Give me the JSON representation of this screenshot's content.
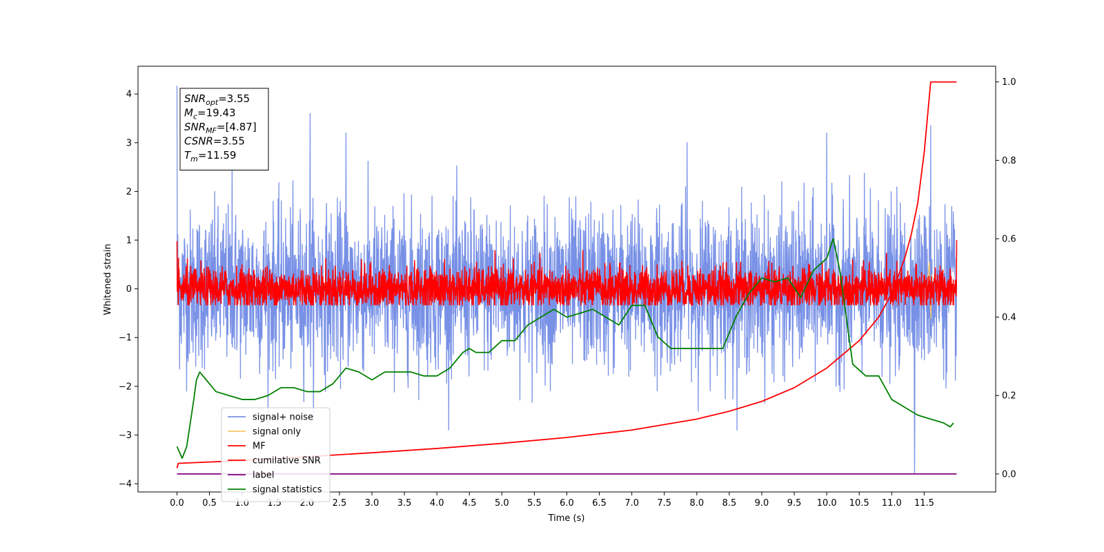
{
  "chart_data": {
    "type": "line",
    "xlabel": "Time (s)",
    "ylabel": "Whitened strain",
    "xlim": [
      -0.6,
      12.6
    ],
    "ylim": [
      -4.17,
      4.57
    ],
    "y2lim": [
      -0.046,
      1.04
    ],
    "grid": false,
    "legend_position": "lower-left",
    "x_ticks": [
      0.0,
      0.5,
      1.0,
      1.5,
      2.0,
      2.5,
      3.0,
      3.5,
      4.0,
      4.5,
      5.0,
      5.5,
      6.0,
      6.5,
      7.0,
      7.5,
      8.0,
      8.5,
      9.0,
      9.5,
      10.0,
      10.5,
      11.0,
      11.5
    ],
    "x_tick_labels": [
      "0.0",
      "0.5",
      "1.0",
      "1.5",
      "2.0",
      "2.5",
      "3.0",
      "3.5",
      "4.0",
      "4.5",
      "5.0",
      "5.5",
      "6.0",
      "6.5",
      "7.0",
      "7.5",
      "8.0",
      "8.5",
      "9.0",
      "9.5",
      "10.0",
      "10.5",
      "11.0",
      "11.5"
    ],
    "y_ticks": [
      4,
      3,
      2,
      1,
      0,
      -1,
      -2,
      -3,
      -4
    ],
    "y_tick_labels": [
      "4",
      "3",
      "2",
      "1",
      "0",
      "−1",
      "−2",
      "−3",
      "−4"
    ],
    "y2_ticks": [
      1.0,
      0.8,
      0.6,
      0.4,
      0.2,
      0.0
    ],
    "y2_tick_labels": [
      "1.0",
      "0.8",
      "0.6",
      "0.4",
      "0.2",
      "0.0"
    ],
    "annotation": {
      "lines": [
        {
          "base": "SNR",
          "sub": "opt",
          "value": "=3.55"
        },
        {
          "base": "M",
          "sub": "c",
          "value": "=19.43"
        },
        {
          "base": "SNR",
          "sub": "MF",
          "value": "=[4.87]"
        },
        {
          "base": "CSNR",
          "sub": "",
          "value": "=3.55"
        },
        {
          "base": "T",
          "sub": "m",
          "value": "=11.59"
        }
      ]
    },
    "series": [
      {
        "name": "signal+ noise",
        "color": "#7891e6",
        "axis": "left",
        "kind": "noise",
        "x_range": [
          0.0,
          12.0
        ],
        "amplitude": 0.8,
        "peaks_x": [
          0.0,
          0.85,
          2.05,
          2.6,
          7.85,
          10.0,
          11.35,
          11.6
        ],
        "peaks_y": [
          4.17,
          3.3,
          3.6,
          3.2,
          3.0,
          3.2,
          -3.78,
          3.35
        ]
      },
      {
        "name": "signal only",
        "color": "#f7c86a",
        "axis": "left",
        "kind": "chirp",
        "x": [
          11.55,
          11.58,
          11.6,
          11.62
        ],
        "y": [
          0.2,
          0.55,
          -0.6,
          0.3
        ]
      },
      {
        "name": "MF",
        "color": "#ff0000",
        "axis": "left",
        "kind": "mf",
        "x_range": [
          0.0,
          12.0
        ],
        "band": [
          -0.33,
          0.8
        ]
      },
      {
        "name": "cumilative SNR",
        "color": "#ff0000",
        "axis": "right",
        "x": [
          0.0,
          0.02,
          1.0,
          2.0,
          3.0,
          4.0,
          5.0,
          6.0,
          7.0,
          8.0,
          8.5,
          9.0,
          9.5,
          10.0,
          10.5,
          10.8,
          11.0,
          11.2,
          11.3,
          11.4,
          11.5,
          11.55,
          11.6,
          12.0
        ],
        "y": [
          0.015,
          0.027,
          0.034,
          0.044,
          0.054,
          0.065,
          0.078,
          0.093,
          0.112,
          0.14,
          0.16,
          0.185,
          0.22,
          0.27,
          0.34,
          0.4,
          0.46,
          0.55,
          0.61,
          0.69,
          0.82,
          0.91,
          1.0,
          1.0
        ]
      },
      {
        "name": "label",
        "color": "#800080",
        "axis": "right",
        "x": [
          0.0,
          12.0
        ],
        "y": [
          0.0,
          0.0
        ]
      },
      {
        "name": "signal statistics",
        "color": "#008000",
        "axis": "right",
        "x": [
          0.0,
          0.08,
          0.15,
          0.25,
          0.3,
          0.35,
          0.45,
          0.5,
          0.6,
          0.8,
          1.0,
          1.2,
          1.4,
          1.6,
          1.8,
          2.0,
          2.2,
          2.4,
          2.6,
          2.8,
          3.0,
          3.2,
          3.4,
          3.6,
          3.8,
          4.0,
          4.2,
          4.4,
          4.5,
          4.6,
          4.8,
          5.0,
          5.2,
          5.4,
          5.6,
          5.8,
          6.0,
          6.2,
          6.4,
          6.6,
          6.8,
          7.0,
          7.2,
          7.4,
          7.6,
          7.8,
          8.0,
          8.2,
          8.4,
          8.6,
          8.8,
          9.0,
          9.2,
          9.4,
          9.6,
          9.8,
          10.0,
          10.1,
          10.2,
          10.4,
          10.6,
          10.8,
          11.0,
          11.2,
          11.4,
          11.6,
          11.8,
          11.9,
          11.95
        ],
        "y": [
          0.07,
          0.04,
          0.07,
          0.18,
          0.24,
          0.26,
          0.24,
          0.23,
          0.21,
          0.2,
          0.19,
          0.19,
          0.2,
          0.22,
          0.22,
          0.21,
          0.21,
          0.23,
          0.27,
          0.26,
          0.24,
          0.26,
          0.26,
          0.26,
          0.25,
          0.25,
          0.27,
          0.31,
          0.32,
          0.31,
          0.31,
          0.34,
          0.34,
          0.38,
          0.4,
          0.42,
          0.4,
          0.41,
          0.42,
          0.4,
          0.38,
          0.43,
          0.43,
          0.35,
          0.32,
          0.32,
          0.32,
          0.32,
          0.32,
          0.4,
          0.46,
          0.5,
          0.49,
          0.5,
          0.45,
          0.52,
          0.55,
          0.6,
          0.52,
          0.28,
          0.25,
          0.25,
          0.19,
          0.17,
          0.15,
          0.14,
          0.13,
          0.12,
          0.13
        ]
      }
    ]
  }
}
